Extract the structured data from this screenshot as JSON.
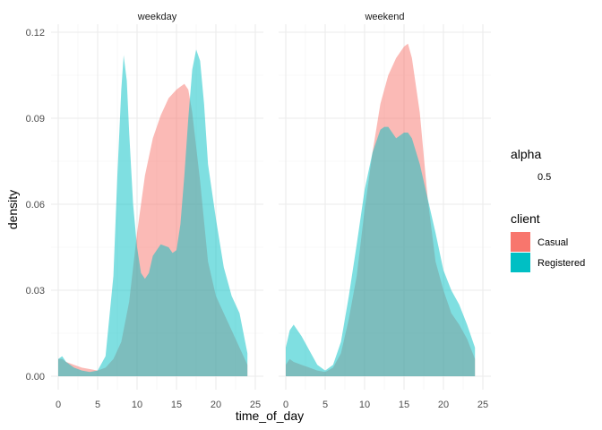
{
  "chart_data": {
    "type": "area",
    "xlabel": "time_of_day",
    "ylabel": "density",
    "xlim": [
      0,
      25
    ],
    "ylim": [
      0,
      0.12
    ],
    "x_ticks": [
      0,
      5,
      10,
      15,
      20,
      25
    ],
    "y_ticks": [
      {
        "value": 0.0,
        "label": "0.00"
      },
      {
        "value": 0.03,
        "label": "0.03"
      },
      {
        "value": 0.06,
        "label": "0.06"
      },
      {
        "value": 0.09,
        "label": "0.09"
      },
      {
        "value": 0.12,
        "label": "0.12"
      }
    ],
    "grid": true,
    "theme": "minimal",
    "fill_opacity": 0.5,
    "legend_position": "right",
    "legend": {
      "alpha": {
        "title": "alpha",
        "value_label": "0.5"
      },
      "client": {
        "title": "client",
        "entries": [
          {
            "name": "Casual",
            "color": "#F8766D"
          },
          {
            "name": "Registered",
            "color": "#00BFC4"
          }
        ]
      }
    },
    "panels": [
      {
        "label": "weekday",
        "series": [
          {
            "name": "Casual",
            "color": "#F8766D",
            "points": [
              [
                0,
                0.006
              ],
              [
                0.5,
                0.006
              ],
              [
                1,
                0.005
              ],
              [
                2,
                0.004
              ],
              [
                3,
                0.003
              ],
              [
                4,
                0.0025
              ],
              [
                5,
                0.002
              ],
              [
                6,
                0.003
              ],
              [
                7,
                0.006
              ],
              [
                8,
                0.012
              ],
              [
                9,
                0.026
              ],
              [
                10,
                0.05
              ],
              [
                11,
                0.07
              ],
              [
                12,
                0.083
              ],
              [
                13,
                0.091
              ],
              [
                14,
                0.097
              ],
              [
                15,
                0.1
              ],
              [
                15.5,
                0.101
              ],
              [
                16,
                0.102
              ],
              [
                16.5,
                0.1
              ],
              [
                17,
                0.092
              ],
              [
                18,
                0.068
              ],
              [
                19,
                0.04
              ],
              [
                20,
                0.028
              ],
              [
                21,
                0.022
              ],
              [
                22,
                0.016
              ],
              [
                23,
                0.01
              ],
              [
                24,
                0.004
              ]
            ]
          },
          {
            "name": "Registered",
            "color": "#00BFC4",
            "points": [
              [
                0,
                0.006
              ],
              [
                0.5,
                0.007
              ],
              [
                1,
                0.005
              ],
              [
                2,
                0.003
              ],
              [
                3,
                0.002
              ],
              [
                4,
                0.0015
              ],
              [
                5,
                0.002
              ],
              [
                6,
                0.007
              ],
              [
                7,
                0.035
              ],
              [
                7.5,
                0.07
              ],
              [
                8,
                0.1
              ],
              [
                8.3,
                0.112
              ],
              [
                8.7,
                0.103
              ],
              [
                9,
                0.085
              ],
              [
                9.5,
                0.06
              ],
              [
                10,
                0.045
              ],
              [
                10.5,
                0.036
              ],
              [
                11,
                0.034
              ],
              [
                11.5,
                0.036
              ],
              [
                12,
                0.042
              ],
              [
                13,
                0.046
              ],
              [
                14,
                0.045
              ],
              [
                14.5,
                0.043
              ],
              [
                15,
                0.044
              ],
              [
                15.5,
                0.053
              ],
              [
                16,
                0.07
              ],
              [
                16.5,
                0.09
              ],
              [
                17,
                0.107
              ],
              [
                17.5,
                0.114
              ],
              [
                18,
                0.11
              ],
              [
                18.5,
                0.095
              ],
              [
                19,
                0.074
              ],
              [
                20,
                0.055
              ],
              [
                21,
                0.038
              ],
              [
                22,
                0.028
              ],
              [
                23,
                0.022
              ],
              [
                24,
                0.008
              ]
            ]
          }
        ]
      },
      {
        "label": "weekend",
        "series": [
          {
            "name": "Casual",
            "color": "#F8766D",
            "points": [
              [
                0,
                0.004
              ],
              [
                0.5,
                0.006
              ],
              [
                1,
                0.005
              ],
              [
                2,
                0.004
              ],
              [
                3,
                0.003
              ],
              [
                4,
                0.002
              ],
              [
                5,
                0.0015
              ],
              [
                6,
                0.003
              ],
              [
                7,
                0.008
              ],
              [
                8,
                0.02
              ],
              [
                9,
                0.035
              ],
              [
                10,
                0.058
              ],
              [
                11,
                0.078
              ],
              [
                12,
                0.095
              ],
              [
                13,
                0.105
              ],
              [
                14,
                0.111
              ],
              [
                15,
                0.115
              ],
              [
                15.5,
                0.116
              ],
              [
                16,
                0.111
              ],
              [
                17,
                0.092
              ],
              [
                18,
                0.062
              ],
              [
                19,
                0.04
              ],
              [
                20,
                0.03
              ],
              [
                21,
                0.022
              ],
              [
                22,
                0.018
              ],
              [
                23,
                0.013
              ],
              [
                24,
                0.006
              ]
            ]
          },
          {
            "name": "Registered",
            "color": "#00BFC4",
            "points": [
              [
                0,
                0.01
              ],
              [
                0.5,
                0.016
              ],
              [
                1,
                0.018
              ],
              [
                2,
                0.014
              ],
              [
                3,
                0.009
              ],
              [
                4,
                0.004
              ],
              [
                5,
                0.002
              ],
              [
                6,
                0.004
              ],
              [
                7,
                0.012
              ],
              [
                8,
                0.028
              ],
              [
                9,
                0.046
              ],
              [
                10,
                0.065
              ],
              [
                11,
                0.078
              ],
              [
                12,
                0.086
              ],
              [
                12.5,
                0.087
              ],
              [
                13,
                0.087
              ],
              [
                14,
                0.083
              ],
              [
                15,
                0.085
              ],
              [
                15.5,
                0.085
              ],
              [
                16,
                0.083
              ],
              [
                17,
                0.074
              ],
              [
                18,
                0.062
              ],
              [
                19,
                0.05
              ],
              [
                20,
                0.037
              ],
              [
                21,
                0.03
              ],
              [
                22,
                0.025
              ],
              [
                23,
                0.018
              ],
              [
                24,
                0.01
              ]
            ]
          }
        ]
      }
    ]
  }
}
